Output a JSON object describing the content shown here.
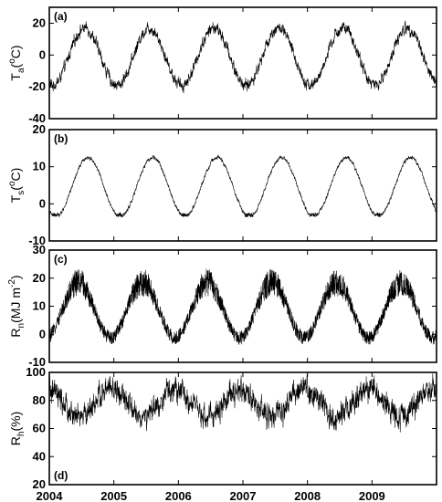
{
  "chart_data": [
    {
      "id": "a",
      "type": "line",
      "panel_label": "(a)",
      "ylabel": {
        "base": "T",
        "sub": "a",
        "rest_before": "(",
        "sup": "o",
        "rest_after": "C)"
      },
      "ylim": [
        -40,
        30
      ],
      "yticks": [
        -40,
        -20,
        0,
        20
      ],
      "xlim": [
        2004,
        2010
      ],
      "xticks": [
        2004,
        2005,
        2006,
        2007,
        2008,
        2009
      ],
      "show_xtick_labels": false,
      "annual_cycle": {
        "mean": -1,
        "amplitude": 18,
        "peak_phase": 0.55,
        "noise": 6
      },
      "series": [
        {
          "x": [
            2004.0,
            2004.55,
            2005.05,
            2005.55,
            2006.05,
            2006.55,
            2007.05,
            2007.55,
            2008.05,
            2008.55,
            2009.05,
            2009.55,
            2010.0
          ],
          "y": [
            -22,
            20,
            -25,
            21,
            -22,
            22,
            -20,
            23,
            -25,
            21,
            -27,
            19,
            -20
          ]
        }
      ]
    },
    {
      "id": "b",
      "type": "line",
      "panel_label": "(b)",
      "ylabel": {
        "base": "T",
        "sub": "s",
        "rest_before": "(",
        "sup": "o",
        "rest_after": "C)"
      },
      "ylim": [
        -10,
        20
      ],
      "yticks": [
        -10,
        0,
        10,
        20
      ],
      "xlim": [
        2004,
        2010
      ],
      "xticks": [
        2004,
        2005,
        2006,
        2007,
        2008,
        2009
      ],
      "show_xtick_labels": false,
      "annual_cycle": {
        "mean": 4.5,
        "amplitude": 8,
        "peak_phase": 0.6,
        "noise": 0.8,
        "floor": -3
      },
      "series": [
        {
          "x": [
            2004.0,
            2004.6,
            2005.1,
            2005.6,
            2006.1,
            2006.6,
            2007.1,
            2007.6,
            2008.1,
            2008.6,
            2009.1,
            2009.6,
            2010.0
          ],
          "y": [
            -3,
            12,
            -2,
            12,
            -2,
            13,
            -2,
            14,
            -2,
            12,
            -3,
            11,
            -2
          ]
        }
      ]
    },
    {
      "id": "c",
      "type": "line",
      "panel_label": "(c)",
      "ylabel": {
        "base": "R",
        "sub": "n",
        "rest_before": "(MJ m",
        "sup": "-2",
        "rest_after": ")"
      },
      "ylim": [
        -10,
        30
      ],
      "yticks": [
        -10,
        0,
        10,
        20,
        30
      ],
      "xlim": [
        2004,
        2010
      ],
      "xticks": [
        2004,
        2005,
        2006,
        2007,
        2008,
        2009
      ],
      "show_xtick_labels": false,
      "annual_cycle": {
        "mean": 9,
        "amplitude": 10,
        "peak_phase": 0.45,
        "noise": 5,
        "spiky": true
      },
      "series": [
        {
          "x": [
            2004.0,
            2004.45,
            2005.0,
            2005.45,
            2006.0,
            2006.45,
            2007.0,
            2007.45,
            2008.0,
            2008.45,
            2009.0,
            2009.45,
            2010.0
          ],
          "y": [
            0,
            20,
            0,
            20,
            -1,
            19,
            -1,
            20,
            0,
            20,
            0,
            19,
            0
          ]
        }
      ]
    },
    {
      "id": "d",
      "type": "line",
      "panel_label": "(d)",
      "ylabel": {
        "base": "R",
        "sub": "h",
        "rest_before": "(%)",
        "sup": "",
        "rest_after": ""
      },
      "ylim": [
        20,
        100
      ],
      "yticks": [
        20,
        40,
        60,
        80,
        100
      ],
      "xlim": [
        2004,
        2010
      ],
      "xticks": [
        2004,
        2005,
        2006,
        2007,
        2008,
        2009
      ],
      "show_xtick_labels": true,
      "annual_cycle": {
        "mean": 78,
        "amplitude": 10,
        "peak_phase": 0.95,
        "noise": 14,
        "ceiling": 100
      },
      "series": [
        {
          "x": [
            2004.0,
            2004.5,
            2005.0,
            2005.5,
            2006.0,
            2006.5,
            2007.0,
            2007.5,
            2008.0,
            2008.5,
            2009.0,
            2009.5,
            2010.0
          ],
          "y": [
            88,
            60,
            92,
            58,
            90,
            60,
            88,
            62,
            90,
            60,
            88,
            62,
            86
          ]
        }
      ]
    }
  ]
}
